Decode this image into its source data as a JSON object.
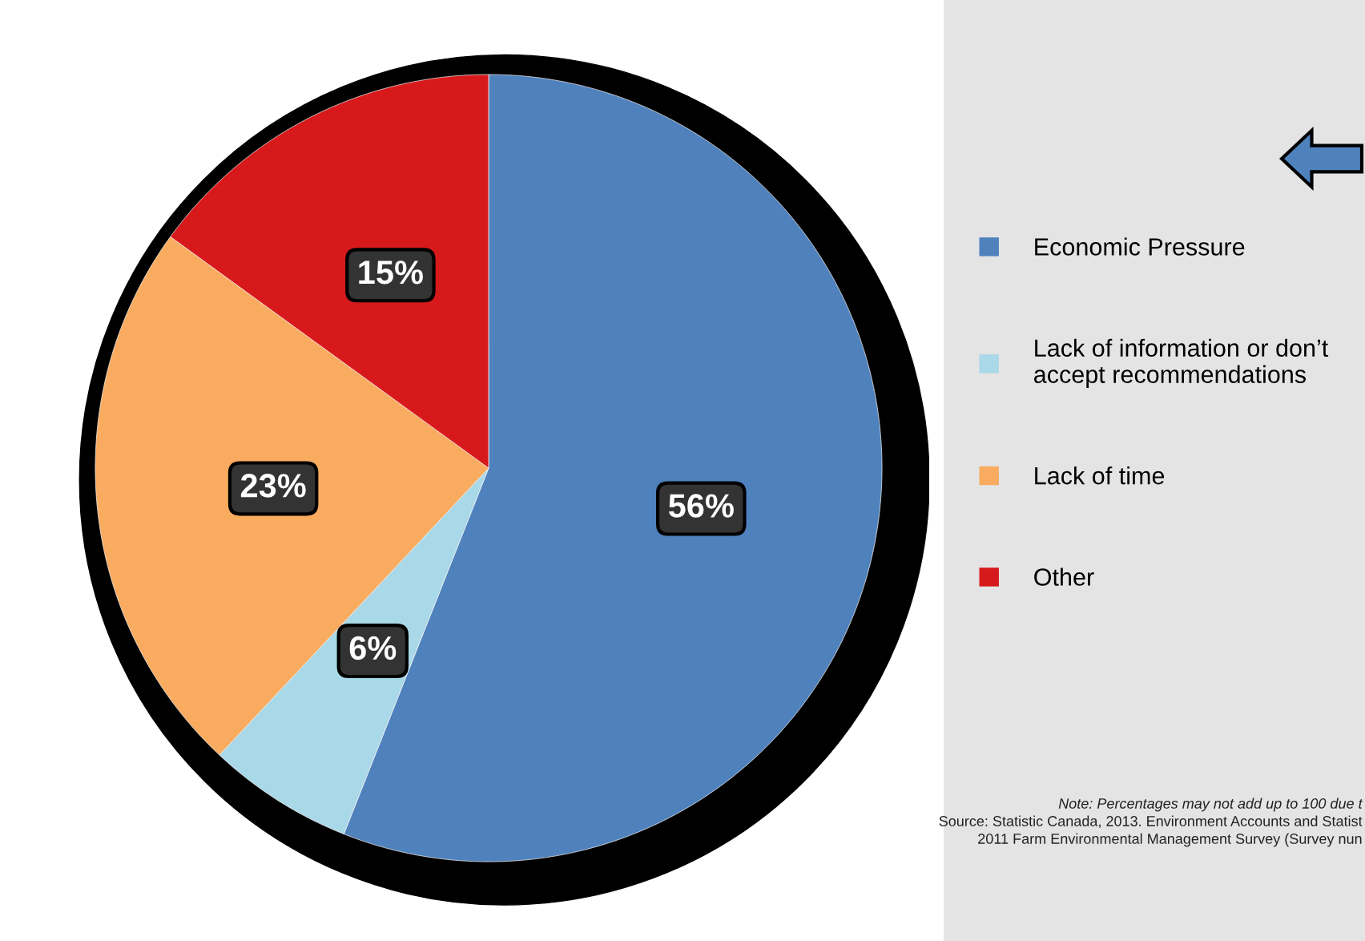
{
  "chart_data": {
    "type": "pie",
    "categories": [
      "Economic Pressure",
      "Lack of information or don’t\naccept recommendations",
      "Lack of time",
      "Other"
    ],
    "values": [
      56,
      6,
      23,
      15
    ],
    "colors": [
      "#4f81bd",
      "#a9d8e8",
      "#f9ab5f",
      "#d7191c"
    ],
    "value_labels": [
      "56%",
      "6%",
      "23%",
      "15%"
    ],
    "legend": "right",
    "annotations": [
      "Note: Percentages may not add up to 100 due t",
      "Source: Statistic Canada, 2013. Environment Accounts and Statist",
      "2011 Farm Environmental Management Survey (Survey nun"
    ]
  }
}
